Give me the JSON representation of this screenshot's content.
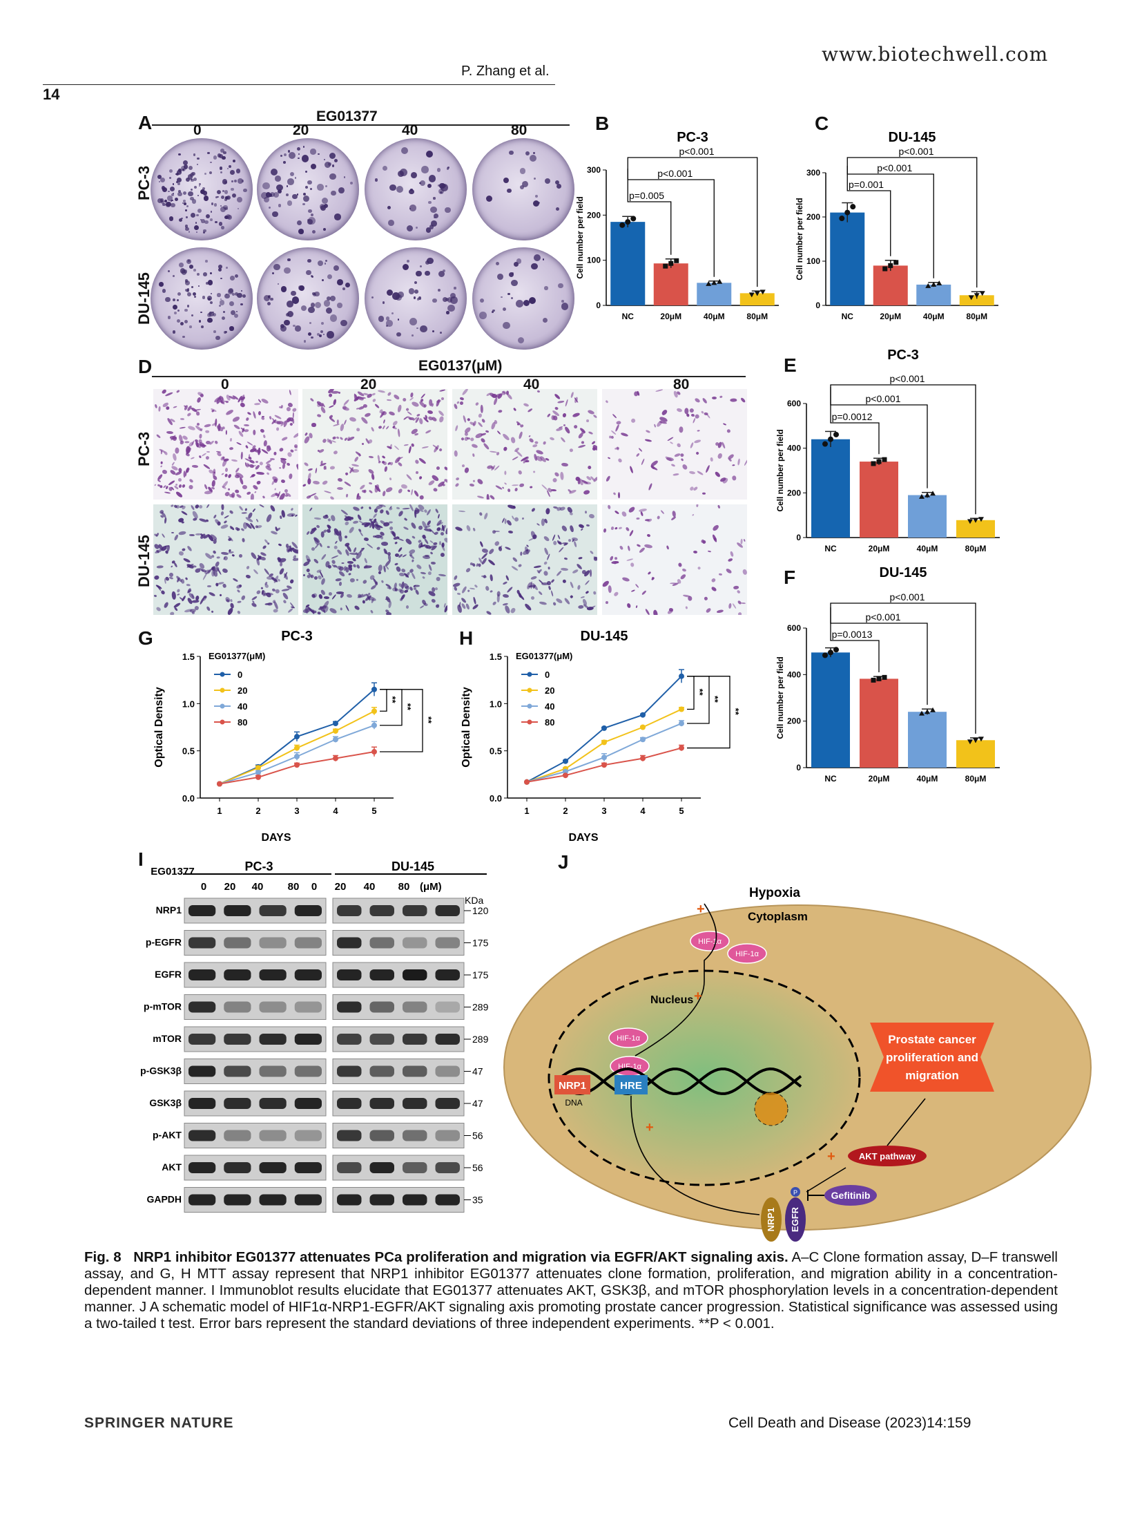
{
  "header": {
    "watermark": "www.biotechwell.com",
    "running_head": "P. Zhang et al.",
    "page_number": "14"
  },
  "panel_a": {
    "letter": "A",
    "treatment": "EG01377",
    "doses": [
      "0",
      "20",
      "40",
      "80"
    ],
    "rows": [
      "PC-3",
      "DU-145"
    ]
  },
  "panel_d": {
    "letter": "D",
    "treatment": "EG0137(μM)",
    "doses": [
      "0",
      "20",
      "40",
      "80"
    ],
    "rows": [
      "PC-3",
      "DU-145"
    ]
  },
  "western": {
    "letter": "I",
    "treatment": "EG01377",
    "groups": [
      "PC-3",
      "DU-145"
    ],
    "doses": [
      "0",
      "20",
      "40",
      "80",
      "0",
      "20",
      "40",
      "80"
    ],
    "unit": "(μM)",
    "kda_label": "KDa",
    "bands": [
      {
        "label": "NRP1",
        "kda": "120"
      },
      {
        "label": "p-EGFR",
        "kda": "175"
      },
      {
        "label": "EGFR",
        "kda": "175"
      },
      {
        "label": "p-mTOR",
        "kda": "289"
      },
      {
        "label": "mTOR",
        "kda": "289"
      },
      {
        "label": "p-GSK3β",
        "kda": "47"
      },
      {
        "label": "GSK3β",
        "kda": "47"
      },
      {
        "label": "p-AKT",
        "kda": "56"
      },
      {
        "label": "AKT",
        "kda": "56"
      },
      {
        "label": "GAPDH",
        "kda": "35"
      }
    ]
  },
  "schematic": {
    "letter": "J",
    "hypoxia": "Hypoxia",
    "cytoplasm": "Cytoplasm",
    "nucleus": "Nucleus",
    "hif": "HIF-1α",
    "nrp1": "NRP1",
    "dna": "DNA",
    "hre": "HRE",
    "outcome": "Prostate cancer proliferation and migration",
    "akt": "AKT pathway",
    "gefitinib": "Gefitinib",
    "egfr": "EGFR",
    "p": "P",
    "plus": "+",
    "colors": {
      "cell": "#d9b77a",
      "nucleus": "#7fbf7f",
      "hif": "#e0589a",
      "nrp1_box": "#e0553a",
      "hre_box": "#2a7fc0",
      "outcome": "#f0532a",
      "akt": "#b2171e",
      "gefitinib": "#6a3ea0",
      "nrp1_rec": "#a87a1a",
      "egfr_rec": "#4a2a80"
    }
  },
  "caption": {
    "fig": "Fig. 8",
    "title": "NRP1 inhibitor EG01377 attenuates PCa proliferation and migration via EGFR/AKT signaling axis.",
    "body": "A–C Clone formation assay, D–F transwell assay, and G, H MTT assay represent that NRP1 inhibitor EG01377 attenuates clone formation, proliferation, and migration ability in a concentration-dependent manner. I Immunoblot results elucidate that EG01377 attenuates AKT, GSK3β, and mTOR phosphorylation levels in a concentration-dependent manner. J A schematic model of HIF1α-NRP1-EGFR/AKT signaling axis promoting prostate cancer progression. Statistical significance was assessed using a two-tailed t test. Error bars represent the standard deviations of three independent experiments. **P < 0.001."
  },
  "footer": {
    "publisher": "SPRINGER NATURE",
    "citation": "Cell Death and Disease (2023)14:159"
  },
  "bar_colors": [
    "#1565b0",
    "#d9534a",
    "#6f9fd8",
    "#f2c21a"
  ],
  "chart_data": [
    {
      "id": "B",
      "type": "bar",
      "title": "PC-3",
      "ylabel": "Cell number per field",
      "categories": [
        "NC",
        "20μM",
        "40μM",
        "80μM"
      ],
      "values": [
        185,
        93,
        50,
        27
      ],
      "errors": [
        12,
        10,
        4,
        5
      ],
      "ylim": [
        0,
        300
      ],
      "yticks": [
        0,
        100,
        200,
        300
      ],
      "brackets": [
        {
          "from": 0,
          "to": 1,
          "label": "p=0.005"
        },
        {
          "from": 0,
          "to": 2,
          "label": "p<0.001"
        },
        {
          "from": 0,
          "to": 3,
          "label": "p<0.001"
        }
      ]
    },
    {
      "id": "C",
      "type": "bar",
      "title": "DU-145",
      "ylabel": "Cell number per field",
      "categories": [
        "NC",
        "20μM",
        "40μM",
        "80μM"
      ],
      "values": [
        210,
        90,
        47,
        23
      ],
      "errors": [
        22,
        12,
        5,
        8
      ],
      "ylim": [
        0,
        300
      ],
      "yticks": [
        0,
        100,
        200,
        300
      ],
      "brackets": [
        {
          "from": 0,
          "to": 1,
          "label": "p=0.001"
        },
        {
          "from": 0,
          "to": 2,
          "label": "p<0.001"
        },
        {
          "from": 0,
          "to": 3,
          "label": "p<0.001"
        }
      ]
    },
    {
      "id": "E",
      "type": "bar",
      "title": "PC-3",
      "ylabel": "Cell number per field",
      "categories": [
        "NC",
        "20μM",
        "40μM",
        "80μM"
      ],
      "values": [
        440,
        340,
        190,
        78
      ],
      "errors": [
        35,
        15,
        12,
        8
      ],
      "ylim": [
        0,
        600
      ],
      "yticks": [
        0,
        200,
        400,
        600
      ],
      "brackets": [
        {
          "from": 0,
          "to": 1,
          "label": "p=0.0012"
        },
        {
          "from": 0,
          "to": 2,
          "label": "p<0.001"
        },
        {
          "from": 0,
          "to": 3,
          "label": "p<0.001"
        }
      ]
    },
    {
      "id": "F",
      "type": "bar",
      "title": "DU-145",
      "ylabel": "Cell number per field",
      "categories": [
        "NC",
        "20μM",
        "40μM",
        "80μM"
      ],
      "values": [
        495,
        382,
        240,
        118
      ],
      "errors": [
        20,
        10,
        12,
        10
      ],
      "ylim": [
        0,
        600
      ],
      "yticks": [
        0,
        200,
        400,
        600
      ],
      "brackets": [
        {
          "from": 0,
          "to": 1,
          "label": "p=0.0013"
        },
        {
          "from": 0,
          "to": 2,
          "label": "p<0.001"
        },
        {
          "from": 0,
          "to": 3,
          "label": "p<0.001"
        }
      ]
    },
    {
      "id": "G",
      "type": "line",
      "title": "PC-3",
      "xlabel": "DAYS",
      "ylabel": "Optical Density",
      "legend_title": "EG01377(μM)",
      "x": [
        1,
        2,
        3,
        4,
        5
      ],
      "xlim": [
        0.5,
        5.5
      ],
      "ylim": [
        0,
        1.5
      ],
      "yticks": [
        0.0,
        0.5,
        1.0,
        1.5
      ],
      "series": [
        {
          "name": "0",
          "color": "#1f5fa8",
          "values": [
            0.15,
            0.33,
            0.65,
            0.79,
            1.15
          ],
          "errors": [
            0,
            0.02,
            0.05,
            0.02,
            0.07
          ]
        },
        {
          "name": "20",
          "color": "#f2c21a",
          "values": [
            0.15,
            0.32,
            0.53,
            0.71,
            0.92
          ],
          "errors": [
            0,
            0.02,
            0.03,
            0.02,
            0.04
          ]
        },
        {
          "name": "40",
          "color": "#7fa8d8",
          "values": [
            0.15,
            0.27,
            0.44,
            0.62,
            0.77
          ],
          "errors": [
            0,
            0.02,
            0.04,
            0.03,
            0.04
          ]
        },
        {
          "name": "80",
          "color": "#d9534a",
          "values": [
            0.15,
            0.22,
            0.35,
            0.42,
            0.49
          ],
          "errors": [
            0,
            0.02,
            0.02,
            0.03,
            0.05
          ]
        }
      ],
      "significance": [
        "**",
        "**",
        "**"
      ]
    },
    {
      "id": "H",
      "type": "line",
      "title": "DU-145",
      "xlabel": "DAYS",
      "ylabel": "Optical Density",
      "legend_title": "EG01377(μM)",
      "x": [
        1,
        2,
        3,
        4,
        5
      ],
      "xlim": [
        0.5,
        5.5
      ],
      "ylim": [
        0,
        1.5
      ],
      "yticks": [
        0.0,
        0.5,
        1.0,
        1.5
      ],
      "series": [
        {
          "name": "0",
          "color": "#1f5fa8",
          "values": [
            0.17,
            0.39,
            0.74,
            0.88,
            1.29
          ],
          "errors": [
            0,
            0.01,
            0.01,
            0.01,
            0.07
          ]
        },
        {
          "name": "20",
          "color": "#f2c21a",
          "values": [
            0.17,
            0.31,
            0.59,
            0.75,
            0.94
          ],
          "errors": [
            0,
            0.01,
            0.02,
            0.01,
            0.02
          ]
        },
        {
          "name": "40",
          "color": "#7fa8d8",
          "values": [
            0.17,
            0.28,
            0.43,
            0.62,
            0.79
          ],
          "errors": [
            0,
            0.01,
            0.04,
            0.02,
            0.03
          ]
        },
        {
          "name": "80",
          "color": "#d9534a",
          "values": [
            0.17,
            0.24,
            0.35,
            0.42,
            0.53
          ],
          "errors": [
            0,
            0.01,
            0.02,
            0.03,
            0.03
          ]
        }
      ],
      "significance": [
        "**",
        "**",
        "**"
      ]
    }
  ]
}
